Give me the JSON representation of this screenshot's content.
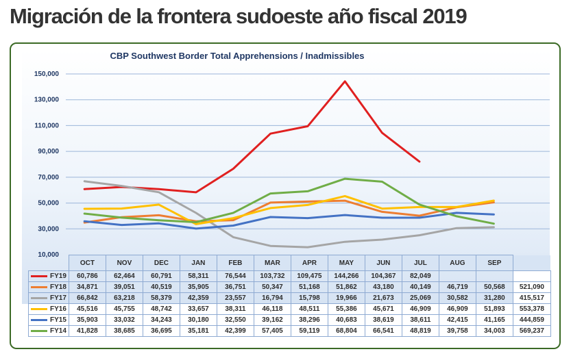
{
  "page": {
    "title": "Migración de la frontera sudoeste año fiscal 2019"
  },
  "chart_data": {
    "type": "line",
    "title": "CBP Southwest Border Total Apprehensions / Inadmissibles",
    "categories": [
      "OCT",
      "NOV",
      "DEC",
      "JAN",
      "FEB",
      "MAR",
      "APR",
      "MAY",
      "JUN",
      "JUL",
      "AUG",
      "SEP"
    ],
    "y_ticks": [
      "10,000",
      "30,000",
      "50,000",
      "70,000",
      "90,000",
      "110,000",
      "130,000",
      "150,000"
    ],
    "ylim": [
      10000,
      150000
    ],
    "grid": true,
    "legend": "data-table",
    "series": [
      {
        "name": "FY19",
        "color": "#e02020",
        "values": [
          60786,
          62464,
          60791,
          58311,
          76544,
          103732,
          109475,
          144266,
          104367,
          82049,
          null,
          null
        ],
        "labels": [
          "60,786",
          "62,464",
          "60,791",
          "58,311",
          "76,544",
          "103,732",
          "109,475",
          "144,266",
          "104,367",
          "82,049",
          "",
          ""
        ],
        "total": ""
      },
      {
        "name": "FY18",
        "color": "#ed7d31",
        "values": [
          34871,
          39051,
          40519,
          35905,
          36751,
          50347,
          51168,
          51862,
          43180,
          40149,
          46719,
          50568
        ],
        "labels": [
          "34,871",
          "39,051",
          "40,519",
          "35,905",
          "36,751",
          "50,347",
          "51,168",
          "51,862",
          "43,180",
          "40,149",
          "46,719",
          "50,568"
        ],
        "total": "521,090"
      },
      {
        "name": "FY17",
        "color": "#a5a5a5",
        "values": [
          66842,
          63218,
          58379,
          42359,
          23557,
          16794,
          15798,
          19966,
          21673,
          25069,
          30582,
          31280
        ],
        "labels": [
          "66,842",
          "63,218",
          "58,379",
          "42,359",
          "23,557",
          "16,794",
          "15,798",
          "19,966",
          "21,673",
          "25,069",
          "30,582",
          "31,280"
        ],
        "total": "415,517"
      },
      {
        "name": "FY16",
        "color": "#ffc000",
        "values": [
          45516,
          45755,
          48742,
          33657,
          38311,
          46118,
          48511,
          55386,
          45671,
          46909,
          46909,
          51893
        ],
        "labels": [
          "45,516",
          "45,755",
          "48,742",
          "33,657",
          "38,311",
          "46,118",
          "48,511",
          "55,386",
          "45,671",
          "46,909",
          "46,909",
          "51,893"
        ],
        "total": "553,378"
      },
      {
        "name": "FY15",
        "color": "#4472c4",
        "values": [
          35903,
          33032,
          34243,
          30180,
          32550,
          39162,
          38296,
          40683,
          38619,
          38611,
          42415,
          41165
        ],
        "labels": [
          "35,903",
          "33,032",
          "34,243",
          "30,180",
          "32,550",
          "39,162",
          "38,296",
          "40,683",
          "38,619",
          "38,611",
          "42,415",
          "41,165"
        ],
        "total": "444,859"
      },
      {
        "name": "FY14",
        "color": "#70ad47",
        "values": [
          41828,
          38685,
          36695,
          35181,
          42399,
          57405,
          59119,
          68804,
          66541,
          48819,
          39758,
          34003
        ],
        "labels": [
          "41,828",
          "38,685",
          "36,695",
          "35,181",
          "42,399",
          "57,405",
          "59,119",
          "68,804",
          "66,541",
          "48,819",
          "39,758",
          "34,003"
        ],
        "total": "569,237"
      }
    ]
  }
}
